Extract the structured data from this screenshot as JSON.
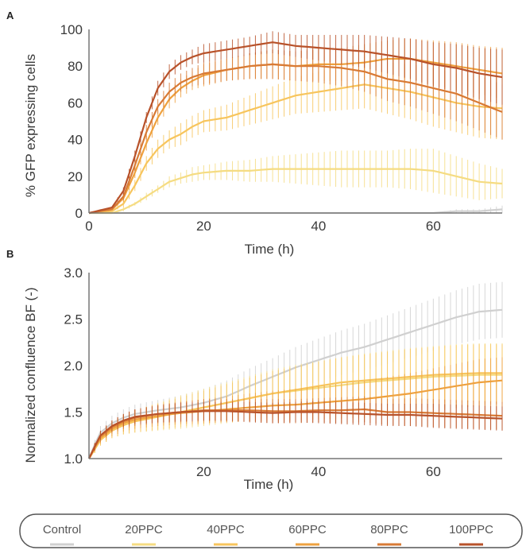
{
  "chart_data": [
    {
      "panel": "A",
      "type": "line",
      "xlabel": "Time (h)",
      "ylabel": "% GFP expressing cells",
      "xlim": [
        0,
        72
      ],
      "ylim": [
        0,
        100
      ],
      "xticks": [
        0,
        20,
        40,
        60
      ],
      "yticks": [
        0,
        20,
        40,
        60,
        80,
        100
      ],
      "error_bars": true,
      "x": [
        0,
        4,
        6,
        8,
        10,
        12,
        14,
        16,
        18,
        20,
        24,
        28,
        32,
        36,
        40,
        44,
        48,
        52,
        56,
        60,
        64,
        68,
        72
      ],
      "series": [
        {
          "name": "Control",
          "color": "#d0d0d0",
          "values": [
            0,
            0,
            0,
            0,
            0,
            0,
            0,
            0,
            0,
            0,
            0,
            0,
            0,
            0,
            0,
            0,
            0,
            0,
            0,
            0,
            1,
            1,
            2
          ],
          "err": [
            0,
            0,
            0,
            0,
            0,
            0,
            0,
            0,
            0,
            0,
            0,
            0,
            0,
            0,
            0,
            0,
            0,
            0,
            0,
            0,
            1,
            1,
            2
          ]
        },
        {
          "name": "20PPC",
          "color": "#f5dc82",
          "values": [
            0,
            0,
            2,
            5,
            9,
            13,
            17,
            19,
            21,
            22,
            23,
            23,
            24,
            24,
            24,
            24,
            24,
            24,
            24,
            23,
            20,
            17,
            16
          ],
          "err": [
            0,
            0,
            1,
            1,
            2,
            2,
            3,
            3,
            4,
            4,
            5,
            6,
            7,
            8,
            9,
            10,
            10,
            10,
            11,
            12,
            11,
            10,
            8
          ]
        },
        {
          "name": "40PPC",
          "color": "#f7c55d",
          "values": [
            0,
            1,
            5,
            15,
            27,
            35,
            40,
            43,
            47,
            50,
            52,
            56,
            60,
            64,
            66,
            68,
            70,
            68,
            66,
            63,
            60,
            58,
            57
          ],
          "err": [
            0,
            0,
            2,
            3,
            4,
            5,
            5,
            6,
            6,
            6,
            7,
            8,
            9,
            10,
            11,
            12,
            13,
            14,
            15,
            16,
            16,
            17,
            17
          ]
        },
        {
          "name": "60PPC",
          "color": "#eea13f",
          "values": [
            0,
            2,
            8,
            22,
            38,
            52,
            62,
            68,
            72,
            75,
            78,
            80,
            81,
            80,
            81,
            81,
            82,
            84,
            84,
            82,
            80,
            78,
            76
          ],
          "err": [
            0,
            0,
            2,
            3,
            4,
            4,
            5,
            5,
            5,
            6,
            6,
            7,
            8,
            8,
            9,
            9,
            10,
            10,
            11,
            12,
            13,
            13,
            14
          ]
        },
        {
          "name": "80PPC",
          "color": "#d87a35",
          "values": [
            0,
            2,
            9,
            26,
            44,
            58,
            66,
            71,
            74,
            76,
            78,
            80,
            81,
            80,
            80,
            79,
            77,
            73,
            71,
            68,
            65,
            60,
            55
          ],
          "err": [
            0,
            0,
            2,
            3,
            4,
            4,
            5,
            5,
            5,
            6,
            6,
            7,
            8,
            8,
            9,
            10,
            11,
            12,
            13,
            14,
            15,
            15,
            15
          ]
        },
        {
          "name": "100PPC",
          "color": "#b8522a",
          "values": [
            0,
            3,
            12,
            31,
            52,
            68,
            77,
            82,
            85,
            87,
            89,
            91,
            93,
            91,
            90,
            89,
            88,
            86,
            84,
            81,
            79,
            76,
            74
          ],
          "err": [
            0,
            0,
            2,
            3,
            3,
            4,
            4,
            4,
            4,
            5,
            5,
            5,
            6,
            6,
            7,
            8,
            9,
            10,
            11,
            12,
            13,
            14,
            15
          ]
        }
      ]
    },
    {
      "panel": "B",
      "type": "line",
      "xlabel": "Time (h)",
      "ylabel": "Normalized confluence BF (-)",
      "xlim": [
        0,
        72
      ],
      "ylim": [
        1.0,
        3.0
      ],
      "xticks": [
        20,
        40,
        60
      ],
      "yticks": [
        "1.0",
        "1.5",
        "2.0",
        "2.5",
        "3.0"
      ],
      "error_bars": true,
      "x": [
        0,
        1,
        2,
        4,
        6,
        8,
        12,
        16,
        20,
        24,
        28,
        32,
        36,
        40,
        44,
        48,
        52,
        56,
        60,
        64,
        68,
        72
      ],
      "series": [
        {
          "name": "Control",
          "color": "#d0d0d0",
          "values": [
            1.0,
            1.15,
            1.28,
            1.38,
            1.44,
            1.48,
            1.52,
            1.55,
            1.6,
            1.67,
            1.78,
            1.88,
            1.98,
            2.06,
            2.14,
            2.2,
            2.28,
            2.36,
            2.44,
            2.52,
            2.58,
            2.6
          ],
          "err": [
            0,
            0.05,
            0.07,
            0.08,
            0.09,
            0.1,
            0.11,
            0.13,
            0.15,
            0.17,
            0.19,
            0.2,
            0.22,
            0.23,
            0.24,
            0.25,
            0.26,
            0.27,
            0.28,
            0.29,
            0.3,
            0.3
          ]
        },
        {
          "name": "20PPC",
          "color": "#f5dc82",
          "values": [
            1.0,
            1.1,
            1.2,
            1.3,
            1.36,
            1.4,
            1.45,
            1.5,
            1.55,
            1.6,
            1.65,
            1.7,
            1.73,
            1.76,
            1.79,
            1.82,
            1.84,
            1.86,
            1.88,
            1.89,
            1.9,
            1.9
          ],
          "err": [
            0,
            0.04,
            0.06,
            0.08,
            0.1,
            0.12,
            0.15,
            0.18,
            0.2,
            0.22,
            0.24,
            0.26,
            0.28,
            0.29,
            0.3,
            0.31,
            0.32,
            0.33,
            0.33,
            0.34,
            0.34,
            0.34
          ]
        },
        {
          "name": "40PPC",
          "color": "#f7c55d",
          "values": [
            1.0,
            1.1,
            1.2,
            1.3,
            1.36,
            1.4,
            1.45,
            1.5,
            1.55,
            1.6,
            1.65,
            1.7,
            1.74,
            1.78,
            1.82,
            1.84,
            1.86,
            1.88,
            1.9,
            1.91,
            1.92,
            1.92
          ],
          "err": [
            0,
            0.04,
            0.06,
            0.08,
            0.1,
            0.12,
            0.14,
            0.16,
            0.18,
            0.2,
            0.22,
            0.24,
            0.25,
            0.26,
            0.27,
            0.28,
            0.29,
            0.3,
            0.3,
            0.31,
            0.31,
            0.31
          ]
        },
        {
          "name": "60PPC",
          "color": "#eea13f",
          "values": [
            1.0,
            1.12,
            1.22,
            1.32,
            1.38,
            1.42,
            1.46,
            1.49,
            1.51,
            1.53,
            1.55,
            1.57,
            1.58,
            1.6,
            1.62,
            1.64,
            1.67,
            1.7,
            1.74,
            1.78,
            1.82,
            1.84
          ],
          "err": [
            0,
            0.04,
            0.06,
            0.08,
            0.09,
            0.1,
            0.11,
            0.12,
            0.13,
            0.14,
            0.15,
            0.16,
            0.17,
            0.18,
            0.19,
            0.2,
            0.21,
            0.22,
            0.23,
            0.24,
            0.25,
            0.25
          ]
        },
        {
          "name": "80PPC",
          "color": "#d87a35",
          "values": [
            1.0,
            1.12,
            1.24,
            1.34,
            1.4,
            1.44,
            1.48,
            1.5,
            1.52,
            1.52,
            1.52,
            1.51,
            1.51,
            1.52,
            1.52,
            1.53,
            1.5,
            1.5,
            1.49,
            1.48,
            1.47,
            1.46
          ],
          "err": [
            0,
            0.04,
            0.06,
            0.07,
            0.08,
            0.09,
            0.1,
            0.11,
            0.12,
            0.12,
            0.12,
            0.13,
            0.13,
            0.13,
            0.14,
            0.14,
            0.14,
            0.15,
            0.15,
            0.15,
            0.15,
            0.15
          ]
        },
        {
          "name": "100PPC",
          "color": "#b8522a",
          "values": [
            1.0,
            1.13,
            1.25,
            1.35,
            1.41,
            1.45,
            1.48,
            1.5,
            1.51,
            1.51,
            1.5,
            1.49,
            1.5,
            1.5,
            1.49,
            1.48,
            1.47,
            1.47,
            1.46,
            1.45,
            1.44,
            1.43
          ],
          "err": [
            0,
            0.04,
            0.05,
            0.06,
            0.07,
            0.08,
            0.09,
            0.1,
            0.1,
            0.1,
            0.11,
            0.11,
            0.11,
            0.12,
            0.12,
            0.12,
            0.12,
            0.12,
            0.13,
            0.13,
            0.13,
            0.13
          ]
        }
      ]
    }
  ],
  "legend": {
    "items": [
      {
        "label": "Control",
        "color": "#d0d0d0"
      },
      {
        "label": "20PPC",
        "color": "#f5dc82"
      },
      {
        "label": "40PPC",
        "color": "#f7c55d"
      },
      {
        "label": "60PPC",
        "color": "#eea13f"
      },
      {
        "label": "80PPC",
        "color": "#d87a35"
      },
      {
        "label": "100PPC",
        "color": "#b8522a"
      }
    ]
  }
}
